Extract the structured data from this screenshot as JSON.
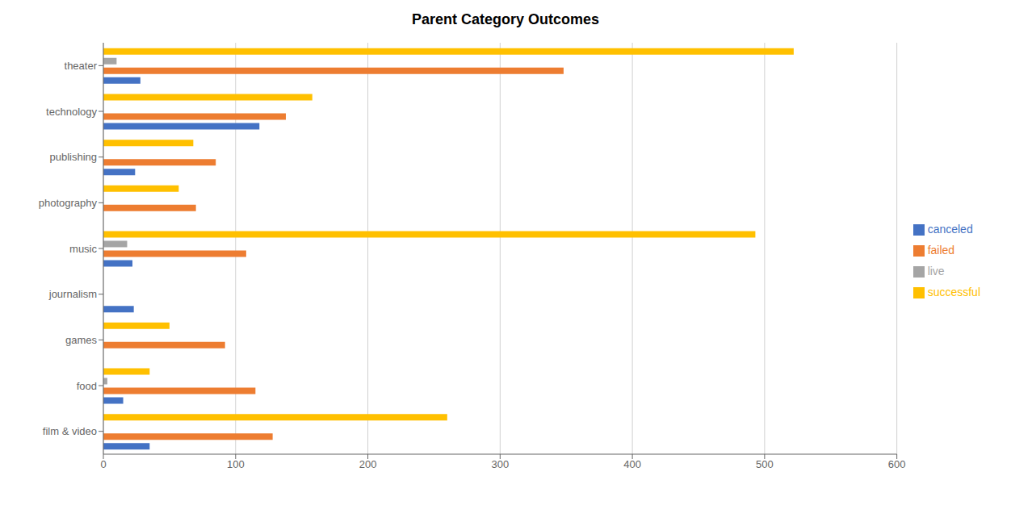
{
  "chart_data": {
    "type": "bar",
    "title": "Parent Category Outcomes",
    "orientation": "horizontal",
    "categories": [
      "theater",
      "technology",
      "publishing",
      "photography",
      "music",
      "journalism",
      "games",
      "food",
      "film & video"
    ],
    "series": [
      {
        "name": "successful",
        "color": "#FFC000",
        "values": [
          522,
          158,
          68,
          57,
          493,
          0,
          50,
          35,
          260
        ]
      },
      {
        "name": "live",
        "color": "#A5A5A5",
        "values": [
          10,
          0,
          0,
          0,
          18,
          0,
          0,
          3,
          0
        ]
      },
      {
        "name": "failed",
        "color": "#ED7D31",
        "values": [
          348,
          138,
          85,
          70,
          108,
          0,
          92,
          115,
          128
        ]
      },
      {
        "name": "canceled",
        "color": "#4472C4",
        "values": [
          28,
          118,
          24,
          0,
          22,
          23,
          0,
          15,
          35
        ]
      }
    ],
    "xlim": [
      0,
      600
    ],
    "xticks": [
      0,
      100,
      200,
      300,
      400,
      500,
      600
    ],
    "grid": true,
    "legend": "right"
  }
}
